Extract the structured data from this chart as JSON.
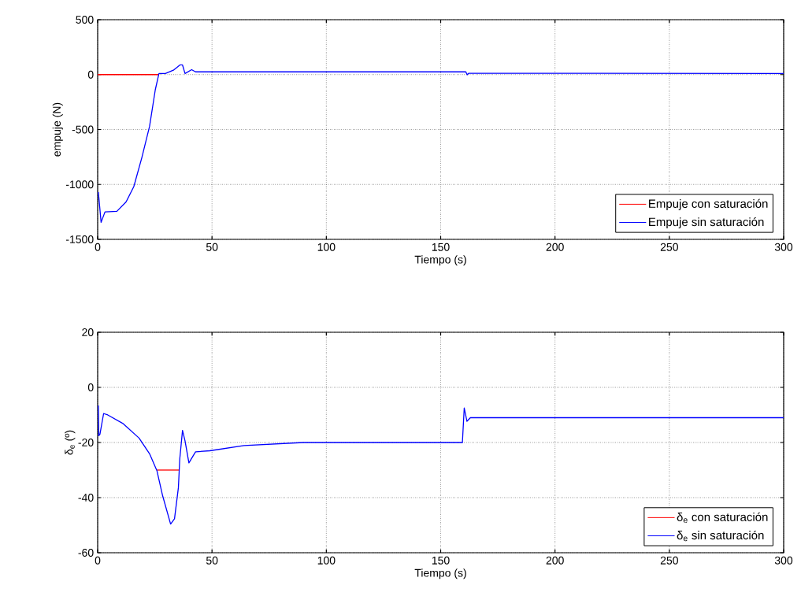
{
  "chart_data": [
    {
      "type": "line",
      "xlabel": "Tiempo (s)",
      "ylabel": "empuje (N)",
      "xlim": [
        0,
        300
      ],
      "xticks": [
        0,
        50,
        100,
        150,
        200,
        250,
        300
      ],
      "ylim": [
        -1500,
        500
      ],
      "yticks": [
        -1500,
        -1000,
        -500,
        0,
        500
      ],
      "grid": true,
      "legend": "bottom right",
      "marker": "none",
      "line_style": "solid",
      "series": [
        {
          "name": "Empuje con saturación",
          "color": "#ff0000",
          "x": [
            0,
            26.8
          ],
          "values": [
            0,
            0
          ]
        },
        {
          "name": "Empuje sin saturación",
          "color": "#0000ff",
          "x": [
            0.3,
            1.5,
            3.2,
            8.4,
            12.4,
            15.8,
            19.3,
            22.7,
            25.2,
            26.8,
            29.6,
            33.1,
            36,
            37.1,
            38.2,
            41.1,
            42.8,
            161,
            161.6,
            162.2,
            300
          ],
          "values": [
            -1070,
            -1345,
            -1250,
            -1245,
            -1160,
            -1020,
            -757,
            -471,
            -138,
            10,
            10,
            40,
            88,
            88,
            10,
            45,
            25,
            25,
            -2,
            12,
            10
          ]
        }
      ]
    },
    {
      "type": "line",
      "xlabel": "Tiempo (s)",
      "ylabel": "δ$_{e}$ (º)",
      "xlim": [
        0,
        300
      ],
      "xticks": [
        0,
        50,
        100,
        150,
        200,
        250,
        300
      ],
      "ylim": [
        -60,
        20
      ],
      "yticks": [
        -60,
        -40,
        -20,
        0,
        20
      ],
      "grid": true,
      "legend": "bottom right",
      "marker": "none",
      "line_style": "solid",
      "series": [
        {
          "name": "δ$_{e}$ con saturación",
          "color": "#ff0000",
          "x": [
            25.9,
            35.5
          ],
          "values": [
            -30,
            -30
          ]
        },
        {
          "name": "δ$_{e}$ sin saturación",
          "color": "#0000ff",
          "x": [
            0.3,
            0.5,
            1.0,
            2.6,
            4.4,
            11.2,
            18.1,
            22.7,
            25.9,
            28.4,
            31.9,
            33.6,
            35.3,
            35.9,
            37.1,
            38.2,
            39.9,
            42.8,
            49,
            64,
            90,
            159.5,
            160.3,
            161.5,
            163,
            300
          ],
          "values": [
            -6.6,
            -17.5,
            -17,
            -9.5,
            -10,
            -13.2,
            -18.4,
            -24.1,
            -30.2,
            -39.3,
            -49.6,
            -47.7,
            -36.4,
            -26,
            -15.6,
            -19.4,
            -27.4,
            -23.4,
            -23,
            -21.1,
            -20,
            -20,
            -7.5,
            -12.3,
            -11,
            -11
          ]
        }
      ]
    }
  ]
}
